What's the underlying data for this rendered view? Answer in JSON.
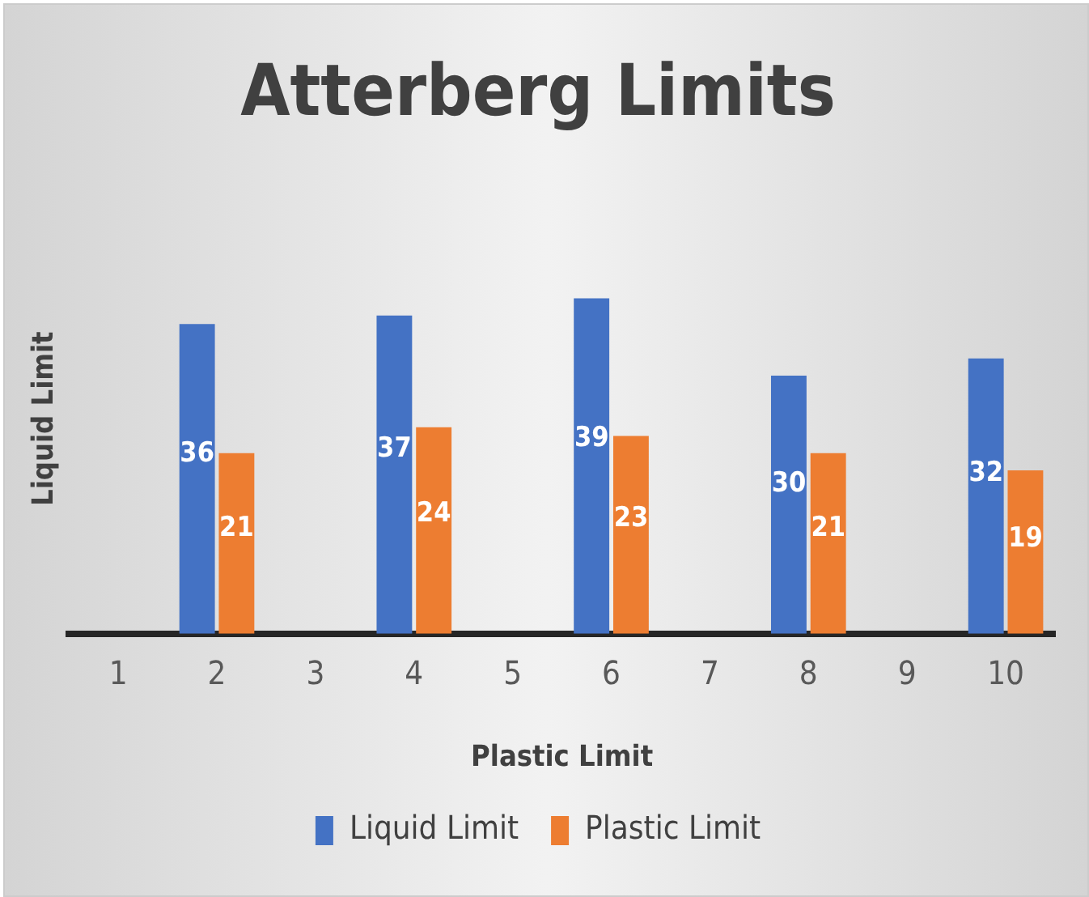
{
  "chart_data": {
    "type": "bar",
    "title": "Atterberg Limits",
    "xlabel": "Plastic Limit",
    "ylabel": "Liquid Limit",
    "categories": [
      "1",
      "2",
      "3",
      "4",
      "5",
      "6",
      "7",
      "8",
      "9",
      "10"
    ],
    "series": [
      {
        "name": "Liquid Limit",
        "color": "#4472c4",
        "values": [
          null,
          36,
          null,
          37,
          null,
          39,
          null,
          30,
          null,
          32
        ]
      },
      {
        "name": "Plastic Limit",
        "color": "#ed7d31",
        "values": [
          null,
          21,
          null,
          24,
          null,
          23,
          null,
          21,
          null,
          19
        ]
      }
    ],
    "legend": "bottom",
    "data_labels": true,
    "tick_labels": "x"
  }
}
